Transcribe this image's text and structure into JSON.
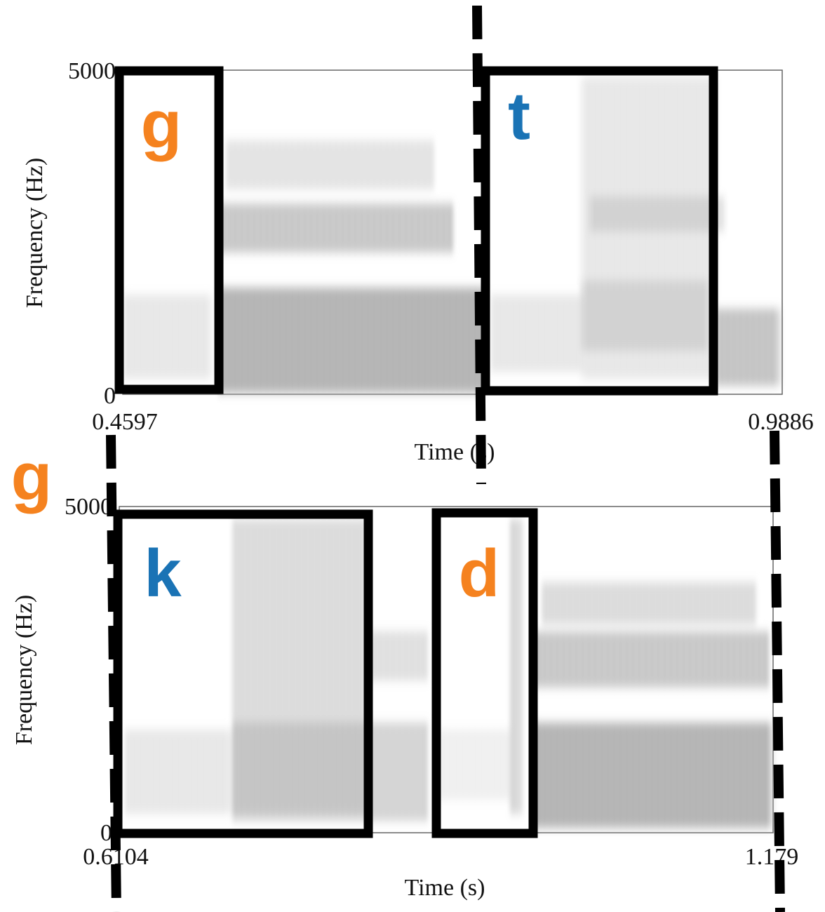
{
  "top": {
    "y_max": "5000",
    "y_min": "0",
    "x_start": "0.4597",
    "x_end": "0.9886",
    "x_label": "Time (s)",
    "y_label": "Frequency (Hz)"
  },
  "bottom": {
    "y_max": "5000",
    "y_min": "0",
    "x_start": "0.6104",
    "x_end": "1.179",
    "x_label": "Time (s)",
    "y_label": "Frequency (Hz)"
  },
  "labels": {
    "top_left": "g",
    "top_right": "t",
    "bottom_left": "k",
    "bottom_right": "d",
    "margin": "g"
  }
}
